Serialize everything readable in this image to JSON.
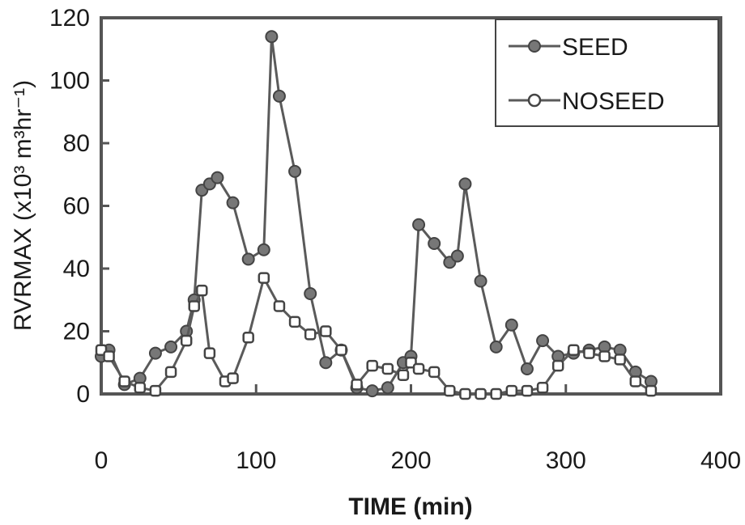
{
  "chart_data": {
    "type": "line",
    "title": "",
    "xlabel": "TIME (min)",
    "ylabel": "RVRMAX (x10³ m³hr⁻¹)",
    "xlim": [
      0,
      400
    ],
    "ylim": [
      0,
      120
    ],
    "xticks": [
      0,
      100,
      200,
      300,
      400
    ],
    "yticks": [
      0,
      20,
      40,
      60,
      80,
      100,
      120
    ],
    "grid": false,
    "legend_position": "top-right",
    "series": [
      {
        "name": "SEED",
        "marker": "filled-circle",
        "color": "#5a5a5a",
        "x": [
          0,
          5,
          15,
          25,
          35,
          45,
          55,
          60,
          65,
          70,
          75,
          85,
          95,
          105,
          110,
          115,
          125,
          135,
          145,
          155,
          165,
          175,
          185,
          195,
          200,
          205,
          215,
          225,
          230,
          235,
          245,
          255,
          265,
          275,
          285,
          295,
          305,
          315,
          325,
          335,
          345,
          355
        ],
        "y": [
          12,
          14,
          3,
          5,
          13,
          15,
          20,
          30,
          65,
          67,
          69,
          61,
          43,
          46,
          114,
          95,
          71,
          32,
          10,
          14,
          2,
          1,
          2,
          10,
          12,
          54,
          48,
          42,
          44,
          67,
          36,
          15,
          22,
          8,
          17,
          12,
          13,
          14,
          15,
          14,
          7,
          4
        ]
      },
      {
        "name": "NOSEED",
        "marker": "hollow-square",
        "color": "#5a5a5a",
        "x": [
          0,
          5,
          15,
          25,
          35,
          45,
          55,
          60,
          65,
          70,
          80,
          85,
          95,
          105,
          115,
          125,
          135,
          145,
          155,
          165,
          175,
          185,
          195,
          200,
          205,
          215,
          225,
          235,
          245,
          255,
          265,
          275,
          285,
          295,
          305,
          315,
          325,
          335,
          345,
          355
        ],
        "y": [
          14,
          12,
          4,
          2,
          1,
          7,
          17,
          28,
          33,
          13,
          4,
          5,
          18,
          37,
          28,
          23,
          19,
          20,
          14,
          3,
          9,
          8,
          6,
          10,
          8,
          7,
          1,
          0,
          0,
          0,
          1,
          1,
          2,
          9,
          14,
          13,
          12,
          11,
          4,
          1
        ]
      }
    ]
  }
}
